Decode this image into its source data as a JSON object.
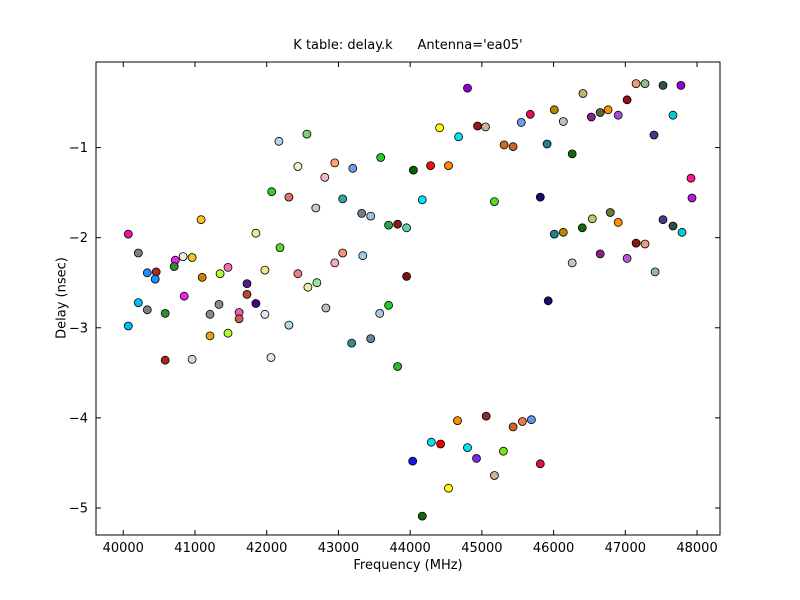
{
  "figure": {
    "background": "#FFFFFF"
  },
  "chart_data": {
    "type": "scatter",
    "title": "K table: delay.k      Antenna='ea05'",
    "xlabel": "Frequency (MHz)",
    "ylabel": "Delay (nsec)",
    "xlim": [
      39620,
      48320
    ],
    "ylim": [
      -5.3,
      -0.05
    ],
    "xticks": [
      40000,
      41000,
      42000,
      43000,
      44000,
      45000,
      46000,
      47000,
      48000
    ],
    "yticks": [
      -5,
      -4,
      -3,
      -2,
      -1
    ],
    "grid": false,
    "legend": "none",
    "marker": {
      "radius": 4,
      "edge_color": "#000000"
    },
    "points": [
      {
        "x": 42170,
        "y": -0.93,
        "c": "#ADD8E6"
      },
      {
        "x": 42560,
        "y": -0.85,
        "c": "#7CCD7C"
      },
      {
        "x": 42435,
        "y": -1.21,
        "c": "#F5F0C8"
      },
      {
        "x": 42070,
        "y": -1.49,
        "c": "#33CC33"
      },
      {
        "x": 42310,
        "y": -1.55,
        "c": "#E07272"
      },
      {
        "x": 41085,
        "y": -1.8,
        "c": "#FFC125"
      },
      {
        "x": 40070,
        "y": -1.96,
        "c": "#E8189E"
      },
      {
        "x": 41850,
        "y": -1.95,
        "c": "#F0E68C"
      },
      {
        "x": 40210,
        "y": -2.17,
        "c": "#7F7F7F"
      },
      {
        "x": 42185,
        "y": -2.11,
        "c": "#55DD22"
      },
      {
        "x": 40835,
        "y": -2.21,
        "c": "#EDEDED"
      },
      {
        "x": 40960,
        "y": -2.22,
        "c": "#FFC125"
      },
      {
        "x": 40725,
        "y": -2.25,
        "c": "#EE22EE"
      },
      {
        "x": 40710,
        "y": -2.32,
        "c": "#2E8B2E"
      },
      {
        "x": 40335,
        "y": -2.39,
        "c": "#1E90FF"
      },
      {
        "x": 40460,
        "y": -2.38,
        "c": "#A52A2A"
      },
      {
        "x": 40445,
        "y": -2.46,
        "c": "#1E90FF"
      },
      {
        "x": 41460,
        "y": -2.33,
        "c": "#F271B0"
      },
      {
        "x": 41350,
        "y": -2.4,
        "c": "#ADFF2F"
      },
      {
        "x": 41975,
        "y": -2.36,
        "c": "#F0E68C"
      },
      {
        "x": 42435,
        "y": -2.4,
        "c": "#F08080"
      },
      {
        "x": 41100,
        "y": -2.44,
        "c": "#CD8500"
      },
      {
        "x": 41725,
        "y": -2.51,
        "c": "#551A8B"
      },
      {
        "x": 41725,
        "y": -2.63,
        "c": "#B04A3A"
      },
      {
        "x": 40850,
        "y": -2.65,
        "c": "#EE22EE"
      },
      {
        "x": 40210,
        "y": -2.72,
        "c": "#00BFFF"
      },
      {
        "x": 40335,
        "y": -2.8,
        "c": "#7F7F7F"
      },
      {
        "x": 40585,
        "y": -2.84,
        "c": "#2E8B2E"
      },
      {
        "x": 41335,
        "y": -2.74,
        "c": "#8C8C8C"
      },
      {
        "x": 41210,
        "y": -2.85,
        "c": "#8C8C8C"
      },
      {
        "x": 41615,
        "y": -2.83,
        "c": "#F061A8"
      },
      {
        "x": 41615,
        "y": -2.9,
        "c": "#D05858"
      },
      {
        "x": 41850,
        "y": -2.73,
        "c": "#4B0082"
      },
      {
        "x": 41975,
        "y": -2.85,
        "c": "#E4E4F4"
      },
      {
        "x": 40070,
        "y": -2.98,
        "c": "#00BFFF"
      },
      {
        "x": 42310,
        "y": -2.97,
        "c": "#ADD8E6"
      },
      {
        "x": 41210,
        "y": -3.09,
        "c": "#E8A118"
      },
      {
        "x": 41460,
        "y": -3.06,
        "c": "#ADFF2F"
      },
      {
        "x": 40585,
        "y": -3.36,
        "c": "#B22222"
      },
      {
        "x": 40960,
        "y": -3.35,
        "c": "#D8D8D8"
      },
      {
        "x": 42060,
        "y": -3.33,
        "c": "#E4E4F4"
      },
      {
        "x": 44800,
        "y": -0.34,
        "c": "#9400D3"
      },
      {
        "x": 44410,
        "y": -0.78,
        "c": "#FFFF00"
      },
      {
        "x": 44940,
        "y": -0.76,
        "c": "#9B1515"
      },
      {
        "x": 45050,
        "y": -0.77,
        "c": "#D2B48C"
      },
      {
        "x": 44675,
        "y": -0.88,
        "c": "#00E5EE"
      },
      {
        "x": 45310,
        "y": -0.97,
        "c": "#D2691E"
      },
      {
        "x": 45435,
        "y": -0.99,
        "c": "#CD6620"
      },
      {
        "x": 43590,
        "y": -1.11,
        "c": "#22CC22"
      },
      {
        "x": 42950,
        "y": -1.17,
        "c": "#FFA07A"
      },
      {
        "x": 43200,
        "y": -1.23,
        "c": "#6C9CE8"
      },
      {
        "x": 44045,
        "y": -1.25,
        "c": "#006400"
      },
      {
        "x": 44285,
        "y": -1.2,
        "c": "#EE1111"
      },
      {
        "x": 44535,
        "y": -1.2,
        "c": "#FF8C00"
      },
      {
        "x": 42810,
        "y": -1.33,
        "c": "#F4B8C4"
      },
      {
        "x": 43060,
        "y": -1.57,
        "c": "#2FA5A5"
      },
      {
        "x": 44170,
        "y": -1.58,
        "c": "#00E5EE"
      },
      {
        "x": 45175,
        "y": -1.6,
        "c": "#55DD22"
      },
      {
        "x": 42685,
        "y": -1.67,
        "c": "#C8C8C8"
      },
      {
        "x": 43325,
        "y": -1.73,
        "c": "#708090"
      },
      {
        "x": 43450,
        "y": -1.76,
        "c": "#A8BED8"
      },
      {
        "x": 43700,
        "y": -1.86,
        "c": "#2EA44F"
      },
      {
        "x": 43825,
        "y": -1.85,
        "c": "#8B1A1A"
      },
      {
        "x": 43950,
        "y": -1.89,
        "c": "#66CDAA"
      },
      {
        "x": 43060,
        "y": -2.17,
        "c": "#F2917E"
      },
      {
        "x": 43340,
        "y": -2.2,
        "c": "#9ECAE8"
      },
      {
        "x": 42950,
        "y": -2.28,
        "c": "#F4AABE"
      },
      {
        "x": 43950,
        "y": -2.43,
        "c": "#7E0F0F"
      },
      {
        "x": 42700,
        "y": -2.5,
        "c": "#98E898"
      },
      {
        "x": 42575,
        "y": -2.55,
        "c": "#EEE8AA"
      },
      {
        "x": 42825,
        "y": -2.78,
        "c": "#C0C0C0"
      },
      {
        "x": 43700,
        "y": -2.75,
        "c": "#22CC22"
      },
      {
        "x": 43575,
        "y": -2.84,
        "c": "#AEC6E4"
      },
      {
        "x": 43450,
        "y": -3.12,
        "c": "#6E8292"
      },
      {
        "x": 43185,
        "y": -3.17,
        "c": "#2F8F8F"
      },
      {
        "x": 43825,
        "y": -3.43,
        "c": "#2EB82E"
      },
      {
        "x": 44660,
        "y": -4.03,
        "c": "#FF8C00"
      },
      {
        "x": 45060,
        "y": -3.98,
        "c": "#8B2A2A"
      },
      {
        "x": 45435,
        "y": -4.1,
        "c": "#CD661D"
      },
      {
        "x": 44295,
        "y": -4.27,
        "c": "#00E5EE"
      },
      {
        "x": 44425,
        "y": -4.29,
        "c": "#EE0000"
      },
      {
        "x": 44800,
        "y": -4.33,
        "c": "#00E5EE"
      },
      {
        "x": 45300,
        "y": -4.37,
        "c": "#76E513"
      },
      {
        "x": 44035,
        "y": -4.48,
        "c": "#1515E8"
      },
      {
        "x": 44925,
        "y": -4.45,
        "c": "#7A2BE0"
      },
      {
        "x": 45175,
        "y": -4.64,
        "c": "#D2B48C"
      },
      {
        "x": 44535,
        "y": -4.78,
        "c": "#FFFF00"
      },
      {
        "x": 44170,
        "y": -5.09,
        "c": "#0F6B0F"
      },
      {
        "x": 45565,
        "y": -4.04,
        "c": "#F2764B"
      },
      {
        "x": 45690,
        "y": -4.02,
        "c": "#6495ED"
      },
      {
        "x": 45815,
        "y": -4.51,
        "c": "#DC143C"
      },
      {
        "x": 45925,
        "y": -2.7,
        "c": "#10106B"
      },
      {
        "x": 47150,
        "y": -0.29,
        "c": "#EE9A80"
      },
      {
        "x": 47275,
        "y": -0.29,
        "c": "#8FBC8F"
      },
      {
        "x": 47525,
        "y": -0.31,
        "c": "#2F4F4F"
      },
      {
        "x": 47775,
        "y": -0.31,
        "c": "#9400D3"
      },
      {
        "x": 46410,
        "y": -0.4,
        "c": "#BDB76B"
      },
      {
        "x": 47025,
        "y": -0.47,
        "c": "#990F0F"
      },
      {
        "x": 45675,
        "y": -0.63,
        "c": "#E0115F"
      },
      {
        "x": 46010,
        "y": -0.58,
        "c": "#BB8500"
      },
      {
        "x": 45550,
        "y": -0.72,
        "c": "#6C9CE8"
      },
      {
        "x": 46135,
        "y": -0.71,
        "c": "#BFBFBF"
      },
      {
        "x": 46525,
        "y": -0.66,
        "c": "#8B1F8B"
      },
      {
        "x": 46650,
        "y": -0.61,
        "c": "#556B2F"
      },
      {
        "x": 46760,
        "y": -0.58,
        "c": "#FF9000"
      },
      {
        "x": 46900,
        "y": -0.64,
        "c": "#A050D0"
      },
      {
        "x": 47665,
        "y": -0.64,
        "c": "#00CED1"
      },
      {
        "x": 47400,
        "y": -0.86,
        "c": "#3C3C8C"
      },
      {
        "x": 45910,
        "y": -0.96,
        "c": "#20808C"
      },
      {
        "x": 46260,
        "y": -1.07,
        "c": "#0F6B0F"
      },
      {
        "x": 47915,
        "y": -1.34,
        "c": "#FF1493"
      },
      {
        "x": 45815,
        "y": -1.55,
        "c": "#10106B"
      },
      {
        "x": 47930,
        "y": -1.56,
        "c": "#B01FD8"
      },
      {
        "x": 46790,
        "y": -1.72,
        "c": "#6B7B2F"
      },
      {
        "x": 46540,
        "y": -1.79,
        "c": "#C9C26B"
      },
      {
        "x": 46900,
        "y": -1.83,
        "c": "#FF9000"
      },
      {
        "x": 47525,
        "y": -1.8,
        "c": "#443A8B"
      },
      {
        "x": 47665,
        "y": -1.87,
        "c": "#2F4F4F"
      },
      {
        "x": 47790,
        "y": -1.94,
        "c": "#00CED1"
      },
      {
        "x": 46400,
        "y": -1.89,
        "c": "#0F6B0F"
      },
      {
        "x": 46010,
        "y": -1.96,
        "c": "#20808C"
      },
      {
        "x": 46135,
        "y": -1.94,
        "c": "#BB8500"
      },
      {
        "x": 47150,
        "y": -2.06,
        "c": "#8B1515"
      },
      {
        "x": 47275,
        "y": -2.07,
        "c": "#EE9A80"
      },
      {
        "x": 46650,
        "y": -2.18,
        "c": "#8B1F8B"
      },
      {
        "x": 47025,
        "y": -2.23,
        "c": "#BA55D3"
      },
      {
        "x": 46260,
        "y": -2.28,
        "c": "#C4C4C4"
      },
      {
        "x": 47415,
        "y": -2.38,
        "c": "#8FBC8F"
      }
    ]
  }
}
